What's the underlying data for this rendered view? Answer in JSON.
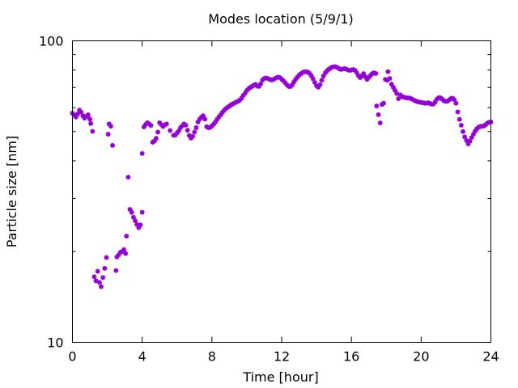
{
  "chart_data": {
    "type": "scatter",
    "title": "Modes location (5/9/1)",
    "xlabel": "Time [hour]",
    "ylabel": "Particle size [nm]",
    "xlim": [
      0,
      24
    ],
    "ylim": [
      10,
      100
    ],
    "yscale": "log",
    "xticks": [
      0,
      4,
      8,
      12,
      16,
      20,
      24
    ],
    "xtick_labels": [
      "0",
      "4",
      "8",
      "12",
      "16",
      "20",
      "24"
    ],
    "yticks": [
      10,
      100
    ],
    "ytick_labels": [
      "10",
      "100"
    ],
    "grid": false,
    "legend": "none",
    "marker": "asterisk",
    "color": "#9400d3",
    "series": [
      {
        "points": [
          [
            0.0,
            57.5
          ],
          [
            0.1,
            56.8
          ],
          [
            0.2,
            55.9
          ],
          [
            0.3,
            57.2
          ],
          [
            0.4,
            58.9
          ],
          [
            0.5,
            58.0
          ],
          [
            0.6,
            56.4
          ],
          [
            0.7,
            55.4
          ],
          [
            0.8,
            56.2
          ],
          [
            0.9,
            56.8
          ],
          [
            1.0,
            55.0
          ],
          [
            1.05,
            53.2
          ],
          [
            1.15,
            50.1
          ],
          [
            1.25,
            16.5
          ],
          [
            1.35,
            16.0
          ],
          [
            1.45,
            17.2
          ],
          [
            1.55,
            15.8
          ],
          [
            1.65,
            15.3
          ],
          [
            1.75,
            16.4
          ],
          [
            1.85,
            17.6
          ],
          [
            1.95,
            19.1
          ],
          [
            2.05,
            49.0
          ],
          [
            2.1,
            53.0
          ],
          [
            2.2,
            52.1
          ],
          [
            2.3,
            45.0
          ],
          [
            2.5,
            17.3
          ],
          [
            2.55,
            19.2
          ],
          [
            2.65,
            19.5
          ],
          [
            2.75,
            19.9
          ],
          [
            2.85,
            20.0
          ],
          [
            2.95,
            20.3
          ],
          [
            3.05,
            19.7
          ],
          [
            3.1,
            22.5
          ],
          [
            3.2,
            35.3
          ],
          [
            3.3,
            27.6
          ],
          [
            3.4,
            27.0
          ],
          [
            3.5,
            26.0
          ],
          [
            3.6,
            25.3
          ],
          [
            3.7,
            24.6
          ],
          [
            3.8,
            24.0
          ],
          [
            3.9,
            24.5
          ],
          [
            4.0,
            27.0
          ],
          [
            4.0,
            42.3
          ],
          [
            4.1,
            51.8
          ],
          [
            4.2,
            52.8
          ],
          [
            4.3,
            53.5
          ],
          [
            4.4,
            53.0
          ],
          [
            4.5,
            52.4
          ],
          [
            4.6,
            46.1
          ],
          [
            4.7,
            46.5
          ],
          [
            4.8,
            47.5
          ],
          [
            4.9,
            49.8
          ],
          [
            5.0,
            53.5
          ],
          [
            5.1,
            52.7
          ],
          [
            5.2,
            52.0
          ],
          [
            5.3,
            52.6
          ],
          [
            5.4,
            53.0
          ],
          [
            5.6,
            50.4
          ],
          [
            5.8,
            48.6
          ],
          [
            5.9,
            48.7
          ],
          [
            6.0,
            49.5
          ],
          [
            6.1,
            50.3
          ],
          [
            6.2,
            51.5
          ],
          [
            6.3,
            52.3
          ],
          [
            6.4,
            53.0
          ],
          [
            6.5,
            52.5
          ],
          [
            6.6,
            50.5
          ],
          [
            6.7,
            48.5
          ],
          [
            6.8,
            47.6
          ],
          [
            6.9,
            48.2
          ],
          [
            7.0,
            49.8
          ],
          [
            7.1,
            51.5
          ],
          [
            7.2,
            53.8
          ],
          [
            7.3,
            55.0
          ],
          [
            7.4,
            55.8
          ],
          [
            7.5,
            56.4
          ],
          [
            7.6,
            55.0
          ],
          [
            7.7,
            51.9
          ],
          [
            7.8,
            51.5
          ],
          [
            7.9,
            51.6
          ],
          [
            8.0,
            52.2
          ],
          [
            8.1,
            52.9
          ],
          [
            8.2,
            53.8
          ],
          [
            8.3,
            54.9
          ],
          [
            8.4,
            55.9
          ],
          [
            8.5,
            56.8
          ],
          [
            8.6,
            57.9
          ],
          [
            8.7,
            58.8
          ],
          [
            8.8,
            59.6
          ],
          [
            8.9,
            60.2
          ],
          [
            9.0,
            60.7
          ],
          [
            9.1,
            61.3
          ],
          [
            9.2,
            61.8
          ],
          [
            9.3,
            62.2
          ],
          [
            9.4,
            62.7
          ],
          [
            9.5,
            63.0
          ],
          [
            9.6,
            63.6
          ],
          [
            9.7,
            64.5
          ],
          [
            9.8,
            65.9
          ],
          [
            9.9,
            67.0
          ],
          [
            10.0,
            68.4
          ],
          [
            10.1,
            69.3
          ],
          [
            10.2,
            70.0
          ],
          [
            10.3,
            70.6
          ],
          [
            10.4,
            71.2
          ],
          [
            10.5,
            71.7
          ],
          [
            10.6,
            70.8
          ],
          [
            10.7,
            70.6
          ],
          [
            10.8,
            72.0
          ],
          [
            10.9,
            74.1
          ],
          [
            11.0,
            75.0
          ],
          [
            11.1,
            75.3
          ],
          [
            11.2,
            75.0
          ],
          [
            11.3,
            74.6
          ],
          [
            11.4,
            74.2
          ],
          [
            11.5,
            74.3
          ],
          [
            11.6,
            74.9
          ],
          [
            11.7,
            75.4
          ],
          [
            11.8,
            75.8
          ],
          [
            11.9,
            75.5
          ],
          [
            12.0,
            74.6
          ],
          [
            12.1,
            73.7
          ],
          [
            12.2,
            72.6
          ],
          [
            12.3,
            71.5
          ],
          [
            12.4,
            70.6
          ],
          [
            12.5,
            70.5
          ],
          [
            12.6,
            71.4
          ],
          [
            12.7,
            73.0
          ],
          [
            12.8,
            74.5
          ],
          [
            12.9,
            75.7
          ],
          [
            13.0,
            76.9
          ],
          [
            13.1,
            77.7
          ],
          [
            13.2,
            78.5
          ],
          [
            13.3,
            78.9
          ],
          [
            13.4,
            79.0
          ],
          [
            13.5,
            78.8
          ],
          [
            13.6,
            78.0
          ],
          [
            13.7,
            76.6
          ],
          [
            13.8,
            74.8
          ],
          [
            13.9,
            72.8
          ],
          [
            14.0,
            70.9
          ],
          [
            14.1,
            70.2
          ],
          [
            14.2,
            71.5
          ],
          [
            14.3,
            74.0
          ],
          [
            14.4,
            76.4
          ],
          [
            14.5,
            78.2
          ],
          [
            14.6,
            79.5
          ],
          [
            14.7,
            80.4
          ],
          [
            14.8,
            81.2
          ],
          [
            14.9,
            81.8
          ],
          [
            15.0,
            82.1
          ],
          [
            15.1,
            82.0
          ],
          [
            15.2,
            81.5
          ],
          [
            15.3,
            80.8
          ],
          [
            15.4,
            80.4
          ],
          [
            15.5,
            80.6
          ],
          [
            15.6,
            80.9
          ],
          [
            15.7,
            80.6
          ],
          [
            15.8,
            80.1
          ],
          [
            15.9,
            79.8
          ],
          [
            16.0,
            80.0
          ],
          [
            16.1,
            80.3
          ],
          [
            16.2,
            79.9
          ],
          [
            16.3,
            78.5
          ],
          [
            16.4,
            76.6
          ],
          [
            16.5,
            75.5
          ],
          [
            16.6,
            76.5
          ],
          [
            16.7,
            77.8
          ],
          [
            16.8,
            76.0
          ],
          [
            16.9,
            74.5
          ],
          [
            17.0,
            75.6
          ],
          [
            17.1,
            76.8
          ],
          [
            17.2,
            77.8
          ],
          [
            17.3,
            78.3
          ],
          [
            17.4,
            77.9
          ],
          [
            17.45,
            60.8
          ],
          [
            17.55,
            56.9
          ],
          [
            17.65,
            53.4
          ],
          [
            17.75,
            61.5
          ],
          [
            17.85,
            62.1
          ],
          [
            17.95,
            74.5
          ],
          [
            18.05,
            74.0
          ],
          [
            18.1,
            79.0
          ],
          [
            18.2,
            75.0
          ],
          [
            18.3,
            71.8
          ],
          [
            18.4,
            70.2
          ],
          [
            18.5,
            68.5
          ],
          [
            18.6,
            66.9
          ],
          [
            18.7,
            64.3
          ],
          [
            18.8,
            66.2
          ],
          [
            18.9,
            65.4
          ],
          [
            19.0,
            65.0
          ],
          [
            19.1,
            64.8
          ],
          [
            19.2,
            64.6
          ],
          [
            19.3,
            64.6
          ],
          [
            19.4,
            64.4
          ],
          [
            19.5,
            64.0
          ],
          [
            19.6,
            63.5
          ],
          [
            19.7,
            63.1
          ],
          [
            19.8,
            62.8
          ],
          [
            19.9,
            62.6
          ],
          [
            20.0,
            62.5
          ],
          [
            20.1,
            62.3
          ],
          [
            20.2,
            62.1
          ],
          [
            20.3,
            62.1
          ],
          [
            20.4,
            62.3
          ],
          [
            20.5,
            62.0
          ],
          [
            20.6,
            61.7
          ],
          [
            20.7,
            61.7
          ],
          [
            20.8,
            62.6
          ],
          [
            20.9,
            64.0
          ],
          [
            21.0,
            64.7
          ],
          [
            21.1,
            64.7
          ],
          [
            21.2,
            64.1
          ],
          [
            21.3,
            63.3
          ],
          [
            21.4,
            63.0
          ],
          [
            21.5,
            63.0
          ],
          [
            21.6,
            63.6
          ],
          [
            21.7,
            64.3
          ],
          [
            21.8,
            64.5
          ],
          [
            21.9,
            63.8
          ],
          [
            22.0,
            62.1
          ],
          [
            22.1,
            58.1
          ],
          [
            22.2,
            54.9
          ],
          [
            22.3,
            52.5
          ],
          [
            22.4,
            50.0
          ],
          [
            22.5,
            48.0
          ],
          [
            22.6,
            46.7
          ],
          [
            22.7,
            45.5
          ],
          [
            22.8,
            46.5
          ],
          [
            22.9,
            47.8
          ],
          [
            23.0,
            49.0
          ],
          [
            23.1,
            50.2
          ],
          [
            23.2,
            51.1
          ],
          [
            23.3,
            51.7
          ],
          [
            23.4,
            52.0
          ],
          [
            23.5,
            52.1
          ],
          [
            23.6,
            52.2
          ],
          [
            23.7,
            52.7
          ],
          [
            23.8,
            53.3
          ],
          [
            23.9,
            53.7
          ],
          [
            24.0,
            53.8
          ]
        ]
      }
    ]
  }
}
